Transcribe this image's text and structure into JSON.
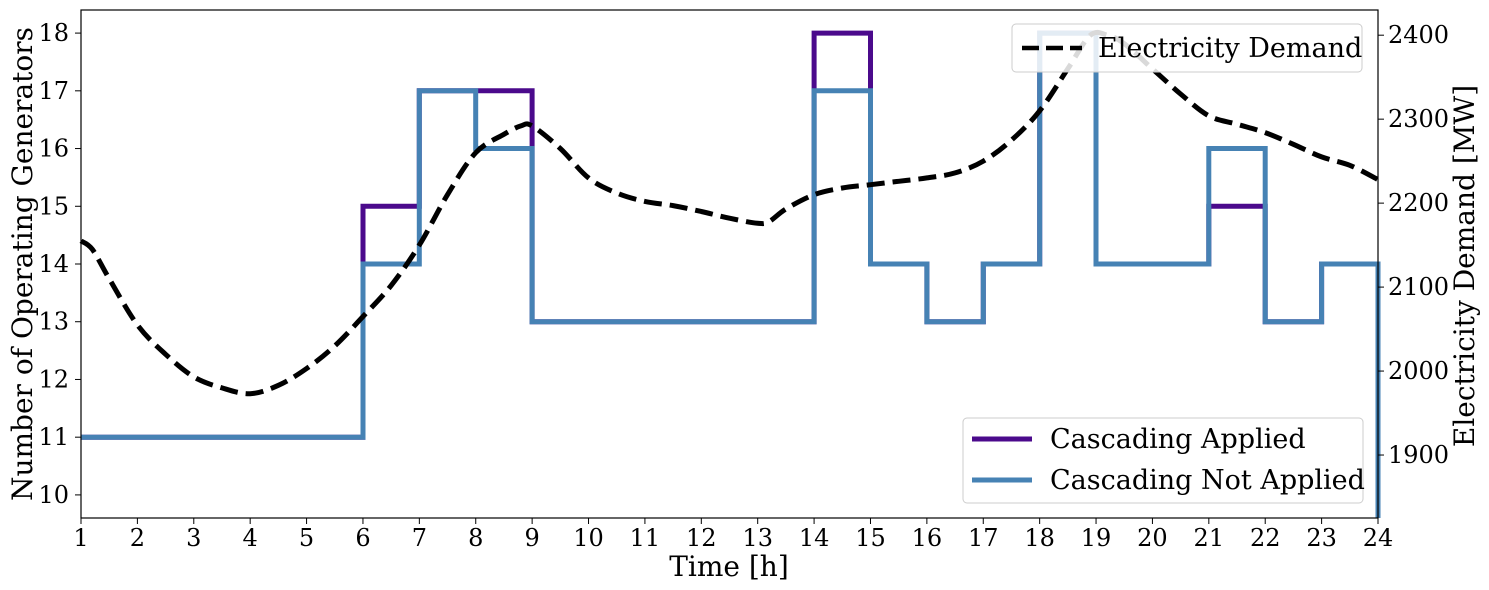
{
  "chart_data": {
    "type": "line",
    "xlabel": "Time [h]",
    "ylabel_left": "Number of Operating Generators",
    "ylabel_right": "Electricity Demand [MW]",
    "xlim": [
      1,
      24
    ],
    "ylim_left": [
      9.6,
      18.4
    ],
    "ylim_right": [
      1825,
      2430
    ],
    "x_ticks": [
      "1",
      "2",
      "3",
      "4",
      "5",
      "6",
      "7",
      "8",
      "9",
      "10",
      "11",
      "12",
      "13",
      "14",
      "15",
      "16",
      "17",
      "18",
      "19",
      "20",
      "21",
      "22",
      "23",
      "24"
    ],
    "y_left_ticks": [
      "10",
      "11",
      "12",
      "13",
      "14",
      "15",
      "16",
      "17",
      "18"
    ],
    "y_right_ticks": [
      "1900",
      "2000",
      "2100",
      "2200",
      "2300",
      "2400"
    ],
    "grid": false,
    "series": [
      {
        "name": "Cascading Applied",
        "axis": "left",
        "style": "step-post",
        "color": "#4b0a8c",
        "x": [
          1,
          2,
          3,
          4,
          5,
          6,
          7,
          8,
          9,
          10,
          11,
          12,
          13,
          14,
          15,
          16,
          17,
          18,
          19,
          20,
          21,
          22,
          23,
          24
        ],
        "values": [
          11,
          11,
          11,
          11,
          11,
          15,
          17,
          17,
          13,
          13,
          13,
          13,
          13,
          18,
          14,
          13,
          14,
          18,
          14,
          14,
          15,
          13,
          14,
          11
        ]
      },
      {
        "name": "Cascading Not Applied",
        "axis": "left",
        "style": "step-post",
        "color": "#4682b4",
        "x": [
          1,
          2,
          3,
          4,
          5,
          6,
          7,
          8,
          9,
          10,
          11,
          12,
          13,
          14,
          15,
          16,
          17,
          18,
          19,
          20,
          21,
          22,
          23,
          24
        ],
        "values": [
          11,
          11,
          11,
          11,
          11,
          14,
          17,
          16,
          13,
          13,
          13,
          13,
          13,
          17,
          14,
          13,
          14,
          18,
          14,
          14,
          16,
          13,
          14,
          11
        ]
      },
      {
        "name": "Electricity Demand",
        "axis": "right",
        "style": "dashed",
        "color": "#000000",
        "x": [
          1,
          1.2,
          1.5,
          2,
          2.5,
          3,
          3.5,
          4,
          4.5,
          5,
          5.5,
          6,
          6.5,
          7,
          7.5,
          8,
          8.5,
          8.8,
          9,
          9.5,
          10,
          10.5,
          11,
          11.5,
          12,
          12.5,
          13,
          13.2,
          13.5,
          14,
          14.5,
          15,
          15.5,
          16,
          16.5,
          17,
          17.5,
          18,
          18.5,
          18.9,
          19.2,
          19.5,
          20,
          20.5,
          21,
          21.5,
          22,
          22.5,
          23,
          23.5,
          24
        ],
        "values": [
          2155,
          2145,
          2110,
          2055,
          2020,
          1993,
          1980,
          1973,
          1983,
          2003,
          2030,
          2065,
          2102,
          2150,
          2210,
          2260,
          2282,
          2292,
          2292,
          2265,
          2230,
          2212,
          2202,
          2197,
          2190,
          2182,
          2176,
          2178,
          2193,
          2210,
          2218,
          2222,
          2226,
          2230,
          2236,
          2250,
          2275,
          2310,
          2360,
          2400,
          2400,
          2390,
          2360,
          2330,
          2304,
          2294,
          2284,
          2270,
          2255,
          2245,
          2228
        ]
      }
    ],
    "legends": [
      {
        "placement": "upper-right",
        "entries": [
          "Electricity Demand"
        ]
      },
      {
        "placement": "lower-right",
        "entries": [
          "Cascading Applied",
          "Cascading Not Applied"
        ]
      }
    ]
  }
}
